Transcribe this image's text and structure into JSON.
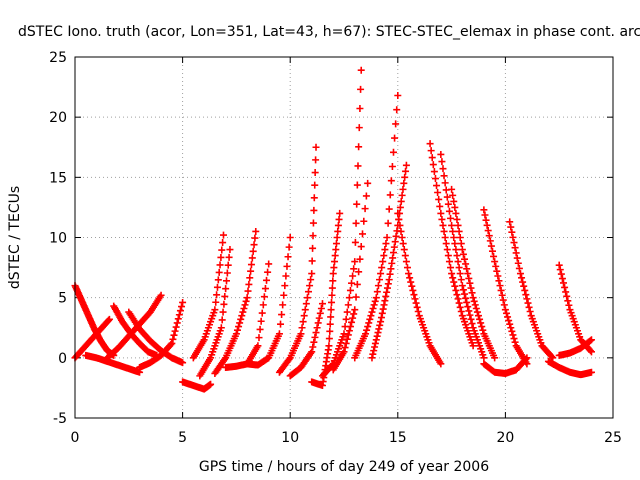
{
  "chart_data": {
    "type": "scatter",
    "title": "dSTEC Iono. truth (acor, Lon=351, Lat=43, h=67): STEC-STEC_elemax in phase cont. arc",
    "xlabel": "GPS time / hours of day 249 of year 2006",
    "ylabel": "dSTEC  / TECUs",
    "xlim": [
      0,
      25
    ],
    "ylim": [
      -5,
      25
    ],
    "xticks": [
      "0",
      "5",
      "10",
      "15",
      "20",
      "25"
    ],
    "yticks": [
      "-5",
      "0",
      "5",
      "10",
      "15",
      "20",
      "25"
    ],
    "grid": true,
    "marker": "+",
    "color": "#ff0000",
    "series": [
      {
        "x": [
          0.0,
          0.3,
          0.6,
          0.9,
          1.2,
          1.5,
          1.8
        ],
        "y": [
          6.0,
          4.8,
          3.6,
          2.4,
          1.4,
          0.6,
          0.2
        ]
      },
      {
        "x": [
          0.0,
          0.4,
          0.8,
          1.2,
          1.6
        ],
        "y": [
          0.0,
          0.8,
          1.6,
          2.4,
          3.2
        ]
      },
      {
        "x": [
          0.5,
          1.0,
          1.5,
          2.0,
          2.5,
          3.0
        ],
        "y": [
          0.2,
          0.0,
          -0.3,
          -0.6,
          -0.9,
          -1.2
        ]
      },
      {
        "x": [
          1.8,
          2.2,
          2.6,
          3.0,
          3.4,
          3.8
        ],
        "y": [
          4.3,
          3.0,
          2.0,
          1.2,
          0.5,
          0.2
        ]
      },
      {
        "x": [
          1.5,
          2.0,
          2.5,
          3.0,
          3.5,
          4.0
        ],
        "y": [
          0.0,
          0.8,
          1.8,
          2.8,
          3.8,
          5.2
        ]
      },
      {
        "x": [
          2.5,
          3.0,
          3.5,
          4.0,
          4.5,
          5.0
        ],
        "y": [
          3.8,
          2.4,
          1.4,
          0.6,
          0.0,
          -0.4
        ]
      },
      {
        "x": [
          3.0,
          3.5,
          4.0,
          4.5,
          5.0
        ],
        "y": [
          -0.8,
          -0.4,
          0.2,
          1.2,
          4.6
        ]
      },
      {
        "x": [
          5.0,
          5.5,
          6.0,
          6.3
        ],
        "y": [
          -2.0,
          -2.3,
          -2.6,
          -2.2
        ]
      },
      {
        "x": [
          5.5,
          6.0,
          6.5,
          6.9
        ],
        "y": [
          0.0,
          1.5,
          4.0,
          10.2
        ]
      },
      {
        "x": [
          5.8,
          6.3,
          6.8,
          7.2
        ],
        "y": [
          -1.5,
          0.0,
          2.5,
          9.0
        ]
      },
      {
        "x": [
          6.5,
          7.0,
          7.5,
          8.0,
          8.4
        ],
        "y": [
          -1.3,
          0.0,
          2.0,
          5.0,
          10.5
        ]
      },
      {
        "x": [
          7.0,
          7.5,
          8.0,
          8.5,
          9.0
        ],
        "y": [
          -0.8,
          -0.7,
          -0.5,
          1.0,
          7.8
        ]
      },
      {
        "x": [
          8.0,
          8.5,
          9.0,
          9.5,
          10.0
        ],
        "y": [
          -0.5,
          -0.6,
          0.0,
          2.0,
          10.0
        ]
      },
      {
        "x": [
          9.5,
          10.0,
          10.5,
          11.0,
          11.2
        ],
        "y": [
          -1.2,
          0.0,
          2.0,
          7.0,
          17.5
        ]
      },
      {
        "x": [
          10.0,
          10.5,
          11.0,
          11.5
        ],
        "y": [
          -1.5,
          -0.8,
          0.5,
          4.5
        ]
      },
      {
        "x": [
          11.0,
          11.5,
          11.8,
          12.0,
          12.3
        ],
        "y": [
          -2.0,
          -2.3,
          1.0,
          7.0,
          12.0
        ]
      },
      {
        "x": [
          11.5,
          12.0,
          12.5,
          13.0,
          13.3
        ],
        "y": [
          -1.5,
          -0.5,
          2.0,
          8.0,
          23.9
        ]
      },
      {
        "x": [
          12.0,
          12.5,
          13.0,
          13.6
        ],
        "y": [
          -1.0,
          0.5,
          4.0,
          14.5
        ]
      },
      {
        "x": [
          13.0,
          13.5,
          14.0,
          14.5,
          15.0
        ],
        "y": [
          0.0,
          2.0,
          5.0,
          10.0,
          21.8
        ]
      },
      {
        "x": [
          13.8,
          14.2,
          14.6,
          15.0,
          15.4
        ],
        "y": [
          0.0,
          3.0,
          6.5,
          11.0,
          16.0
        ]
      },
      {
        "x": [
          15.0,
          15.5,
          16.0,
          16.5,
          17.0
        ],
        "y": [
          12.0,
          7.0,
          3.5,
          1.0,
          -0.5
        ]
      },
      {
        "x": [
          16.5,
          17.0,
          17.5,
          18.0,
          18.5
        ],
        "y": [
          17.8,
          12.0,
          7.0,
          3.5,
          1.0
        ]
      },
      {
        "x": [
          17.0,
          17.5,
          18.0,
          18.5,
          19.0
        ],
        "y": [
          16.9,
          11.0,
          6.0,
          2.5,
          0.0
        ]
      },
      {
        "x": [
          17.5,
          18.0,
          18.5,
          19.0,
          19.5
        ],
        "y": [
          14.0,
          9.0,
          5.0,
          2.0,
          0.0
        ]
      },
      {
        "x": [
          19.0,
          19.5,
          20.0,
          20.5,
          21.0
        ],
        "y": [
          12.3,
          8.0,
          4.0,
          1.0,
          -0.5
        ]
      },
      {
        "x": [
          20.2,
          20.7,
          21.2,
          21.7,
          22.2
        ],
        "y": [
          11.3,
          7.0,
          3.5,
          1.0,
          0.0
        ]
      },
      {
        "x": [
          22.5,
          23.0,
          23.5,
          24.0
        ],
        "y": [
          7.7,
          4.0,
          1.5,
          0.5
        ]
      },
      {
        "x": [
          19.0,
          19.5,
          20.0,
          20.5,
          21.0
        ],
        "y": [
          -0.5,
          -1.2,
          -1.3,
          -1.0,
          0.0
        ]
      },
      {
        "x": [
          22.0,
          22.5,
          23.0,
          23.5,
          24.0
        ],
        "y": [
          -0.3,
          -0.8,
          -1.2,
          -1.4,
          -1.2
        ]
      },
      {
        "x": [
          22.5,
          23.0,
          23.5,
          24.0
        ],
        "y": [
          0.2,
          0.4,
          0.8,
          1.5
        ]
      }
    ]
  }
}
